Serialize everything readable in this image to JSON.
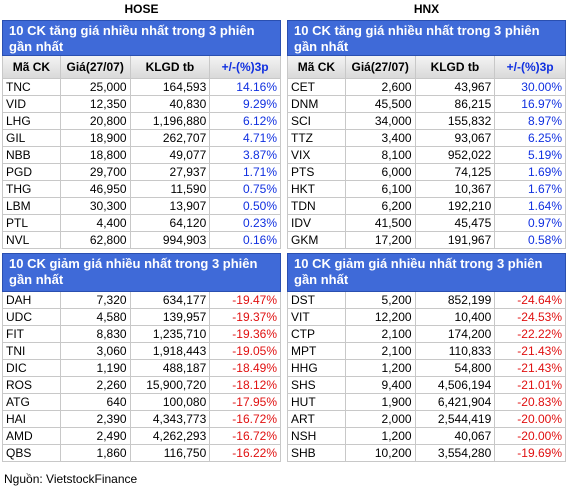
{
  "markets": [
    {
      "label": "HOSE",
      "tables": [
        {
          "title": "10 CK tăng giá nhiều nhất trong 3 phiên gần nhất",
          "headers": [
            "Mã CK",
            "Giá(27/07)",
            "KLGD tb",
            "+/-(%)3p"
          ],
          "rows": [
            [
              "TNC",
              "25,000",
              "164,593",
              "14.16%"
            ],
            [
              "VID",
              "12,350",
              "40,830",
              "9.29%"
            ],
            [
              "LHG",
              "20,800",
              "1,196,880",
              "6.12%"
            ],
            [
              "GIL",
              "18,900",
              "262,707",
              "4.71%"
            ],
            [
              "NBB",
              "18,800",
              "49,077",
              "3.87%"
            ],
            [
              "PGD",
              "29,700",
              "27,937",
              "1.71%"
            ],
            [
              "THG",
              "46,950",
              "11,590",
              "0.75%"
            ],
            [
              "LBM",
              "30,300",
              "13,907",
              "0.50%"
            ],
            [
              "PTL",
              "4,400",
              "64,120",
              "0.23%"
            ],
            [
              "NVL",
              "62,800",
              "994,903",
              "0.16%"
            ]
          ]
        },
        {
          "title": "10 CK giảm giá nhiều nhất trong 3 phiên gần nhất",
          "headers": [],
          "rows": [
            [
              "DAH",
              "7,320",
              "634,177",
              "-19.47%"
            ],
            [
              "UDC",
              "4,580",
              "139,957",
              "-19.37%"
            ],
            [
              "FIT",
              "8,830",
              "1,235,710",
              "-19.36%"
            ],
            [
              "TNI",
              "3,060",
              "1,918,443",
              "-19.05%"
            ],
            [
              "DIC",
              "1,190",
              "488,187",
              "-18.49%"
            ],
            [
              "ROS",
              "2,260",
              "15,900,720",
              "-18.12%"
            ],
            [
              "ATG",
              "640",
              "100,080",
              "-17.95%"
            ],
            [
              "HAI",
              "2,390",
              "4,343,773",
              "-16.72%"
            ],
            [
              "AMD",
              "2,490",
              "4,262,293",
              "-16.72%"
            ],
            [
              "QBS",
              "1,860",
              "116,750",
              "-16.22%"
            ]
          ]
        }
      ]
    },
    {
      "label": "HNX",
      "tables": [
        {
          "title": "10 CK tăng giá nhiều nhất trong 3 phiên gần nhất",
          "headers": [
            "Mã CK",
            "Giá(27/07)",
            "KLGD tb",
            "+/-(%)3p"
          ],
          "rows": [
            [
              "CET",
              "2,600",
              "43,967",
              "30.00%"
            ],
            [
              "DNM",
              "45,500",
              "86,215",
              "16.97%"
            ],
            [
              "SCI",
              "34,000",
              "155,832",
              "8.97%"
            ],
            [
              "TTZ",
              "3,400",
              "93,067",
              "6.25%"
            ],
            [
              "VIX",
              "8,100",
              "952,022",
              "5.19%"
            ],
            [
              "PTS",
              "6,000",
              "74,125",
              "1.69%"
            ],
            [
              "HKT",
              "6,100",
              "10,367",
              "1.67%"
            ],
            [
              "TDN",
              "6,200",
              "192,210",
              "1.64%"
            ],
            [
              "IDV",
              "41,500",
              "45,475",
              "0.97%"
            ],
            [
              "GKM",
              "17,200",
              "191,967",
              "0.58%"
            ]
          ]
        },
        {
          "title": "10 CK giảm giá nhiều nhất trong 3 phiên gần nhất",
          "headers": [],
          "rows": [
            [
              "DST",
              "5,200",
              "852,199",
              "-24.64%"
            ],
            [
              "VIT",
              "12,200",
              "10,400",
              "-24.53%"
            ],
            [
              "CTP",
              "2,100",
              "174,200",
              "-22.22%"
            ],
            [
              "MPT",
              "2,100",
              "110,833",
              "-21.43%"
            ],
            [
              "HHG",
              "1,200",
              "54,800",
              "-21.43%"
            ],
            [
              "SHS",
              "9,400",
              "4,506,194",
              "-21.01%"
            ],
            [
              "HUT",
              "1,900",
              "6,421,904",
              "-20.83%"
            ],
            [
              "ART",
              "2,000",
              "2,544,419",
              "-20.00%"
            ],
            [
              "NSH",
              "1,200",
              "40,067",
              "-20.00%"
            ],
            [
              "SHB",
              "10,200",
              "3,554,280",
              "-19.69%"
            ]
          ]
        }
      ]
    }
  ],
  "source": "Nguồn: VietstockFinance"
}
